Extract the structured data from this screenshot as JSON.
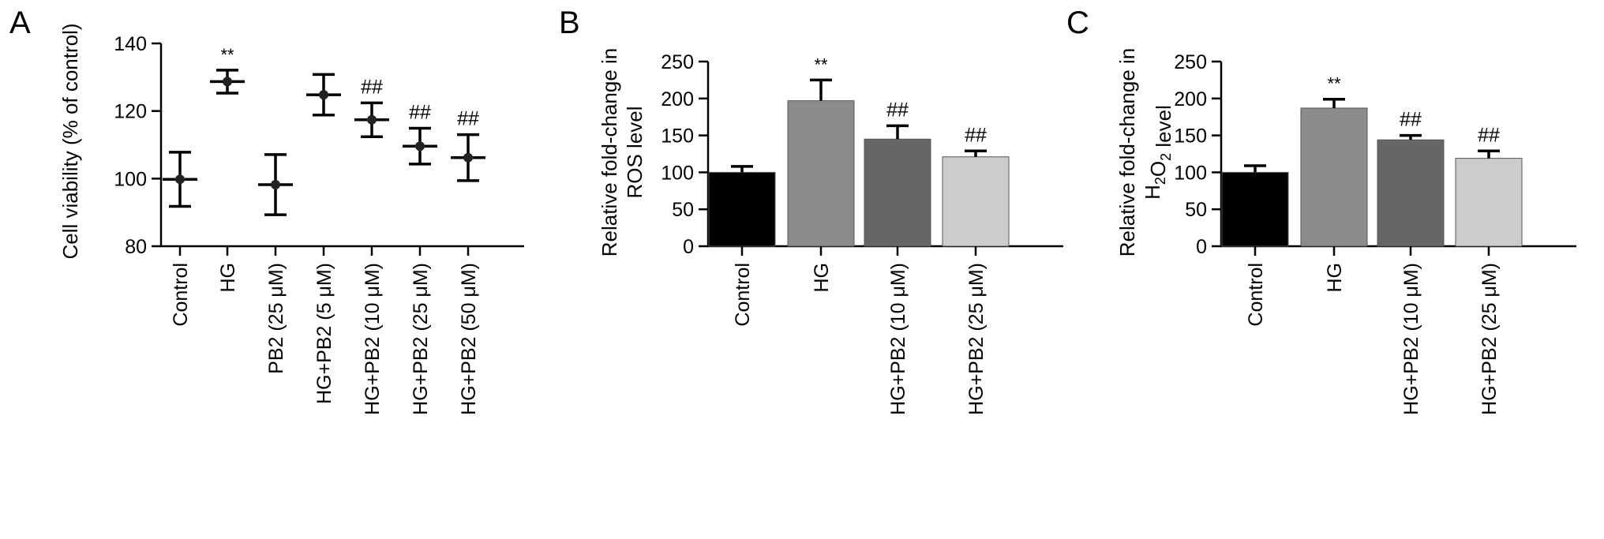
{
  "chart_data": [
    {
      "panel": "A",
      "type": "scatter",
      "ylabel": "Cell viability (% of control)",
      "ylim": [
        80,
        140
      ],
      "yticks": [
        80,
        100,
        120,
        140
      ],
      "categories": [
        "Control",
        "HG",
        "PB2 (25 μM)",
        "HG+PB2 (5 μM)",
        "HG+PB2 (10 μM)",
        "HG+PB2 (25 μM)",
        "HG+PB2 (50 μM)"
      ],
      "values": [
        99.8,
        128.7,
        98.2,
        124.8,
        117.4,
        109.6,
        106.2
      ],
      "errors": [
        8.0,
        3.4,
        8.9,
        6.0,
        5.0,
        5.3,
        6.8
      ],
      "annotations": [
        "",
        "**",
        "",
        "",
        "##",
        "##",
        "##"
      ]
    },
    {
      "panel": "B",
      "type": "bar",
      "ylabel_lines": [
        "Relative fold-change in",
        "ROS level"
      ],
      "ylim": [
        0,
        250
      ],
      "yticks": [
        0,
        50,
        100,
        150,
        200,
        250
      ],
      "categories": [
        "Control",
        "HG",
        "HG+PB2 (10 μM)",
        "HG+PB2 (25 μM)"
      ],
      "values": [
        100,
        197,
        145,
        121
      ],
      "errors": [
        8,
        28,
        18,
        8
      ],
      "annotations": [
        "",
        "**",
        "##",
        "##"
      ],
      "colors": [
        "#000000",
        "#8c8c8c",
        "#666666",
        "#cccccc"
      ]
    },
    {
      "panel": "C",
      "type": "bar",
      "ylabel_lines": [
        "Relative fold-change in",
        "H2O2 level"
      ],
      "ylim": [
        0,
        250
      ],
      "yticks": [
        0,
        50,
        100,
        150,
        200,
        250
      ],
      "categories": [
        "Control",
        "HG",
        "HG+PB2 (10 μM)",
        "HG+PB2 (25 μM)"
      ],
      "values": [
        100,
        187,
        144,
        119
      ],
      "errors": [
        9,
        12,
        6,
        10
      ],
      "annotations": [
        "",
        "**",
        "##",
        "##"
      ],
      "colors": [
        "#000000",
        "#8c8c8c",
        "#666666",
        "#cccccc"
      ]
    }
  ]
}
